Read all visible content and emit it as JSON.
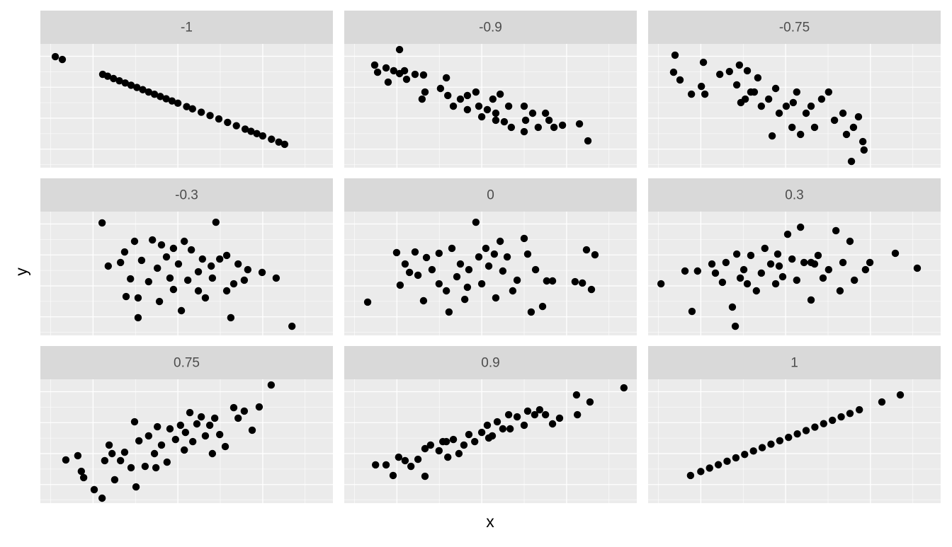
{
  "xlabel": "x",
  "ylabel": "y",
  "chart_data": [
    {
      "type": "scatter",
      "title": "-1",
      "xlim": [
        0,
        100
      ],
      "ylim": [
        0,
        100
      ],
      "xticks": [
        18,
        47,
        76
      ],
      "yticks": [
        15,
        40,
        65,
        90
      ],
      "grid": true,
      "tick_labels": false,
      "color": "#000000",
      "x": [
        5.1,
        7.5,
        21.3,
        23,
        25,
        27,
        29,
        31,
        33,
        35,
        37,
        39,
        41,
        43,
        45,
        47,
        50,
        52,
        55,
        58,
        61,
        64,
        67,
        70,
        72,
        74,
        76,
        79,
        81.5,
        83.5
      ],
      "y": [
        89.7,
        87.4,
        75.4,
        73.9,
        72.0,
        70.2,
        68.4,
        66.6,
        64.8,
        63.0,
        61.1,
        59.3,
        57.5,
        55.7,
        53.9,
        52.1,
        49.3,
        47.5,
        44.8,
        42.1,
        39.4,
        36.6,
        33.9,
        31.2,
        29.4,
        27.5,
        25.7,
        23.0,
        20.7,
        18.9
      ]
    },
    {
      "type": "scatter",
      "title": "-0.9",
      "xlim": [
        0,
        100
      ],
      "ylim": [
        0,
        100
      ],
      "xticks": [
        18,
        47,
        76
      ],
      "yticks": [
        15,
        40,
        65,
        90
      ],
      "grid": true,
      "tick_labels": false,
      "color": "#000000",
      "x": [
        10.4,
        11.4,
        14.3,
        15.0,
        16.9,
        18.9,
        18.9,
        20.6,
        21.3,
        24.2,
        27.1,
        27.6,
        26.6,
        32.9,
        34.9,
        35.4,
        37.3,
        39.7,
        42.1,
        45.0,
        46.0,
        47.0,
        48.9,
        50.8,
        51.8,
        53.3,
        54.7,
        56.2,
        57.1,
        61.5,
        62.0,
        64.4,
        66.3,
        68.8,
        70.0,
        71.7,
        74.6,
        80.4,
        83.3,
        61.5,
        51.8,
        42.1
      ],
      "y": [
        82.9,
        77.1,
        80.6,
        69.1,
        78.3,
        95.4,
        76.0,
        78.3,
        71.4,
        75.4,
        74.9,
        61.1,
        55.4,
        64.0,
        72.6,
        58.3,
        49.7,
        55.4,
        58.3,
        61.1,
        49.7,
        41.1,
        46.9,
        55.4,
        44.0,
        59.4,
        37.1,
        49.7,
        32.6,
        49.7,
        38.3,
        44.0,
        32.6,
        44.0,
        38.3,
        32.6,
        34.3,
        35.4,
        21.7,
        29.1,
        38.3,
        46.9
      ]
    },
    {
      "type": "scatter",
      "title": "-0.75",
      "xlim": [
        0,
        100
      ],
      "ylim": [
        0,
        100
      ],
      "xticks": [
        18,
        47,
        76
      ],
      "yticks": [
        15,
        40,
        65,
        90
      ],
      "grid": true,
      "tick_labels": false,
      "color": "#000000",
      "x": [
        9.2,
        8.7,
        10.9,
        14.8,
        18.9,
        18.2,
        19.4,
        24.5,
        27.8,
        31.2,
        30.3,
        31.7,
        33.9,
        35.1,
        37.5,
        38.7,
        41.2,
        42.4,
        43.6,
        44.8,
        47.2,
        49.2,
        50.8,
        52.1,
        54.0,
        55.7,
        56.9,
        59.3,
        61.7,
        63.7,
        66.6,
        67.8,
        70.2,
        71.9,
        73.4,
        73.8,
        69.5,
        33.2,
        36.3,
        49.6
      ],
      "y": [
        90.9,
        77.1,
        70.9,
        59.4,
        85.1,
        65.7,
        59.4,
        75.4,
        77.7,
        82.9,
        66.9,
        52.6,
        78.3,
        61.1,
        72.6,
        49.7,
        55.4,
        25.7,
        64.0,
        44.0,
        49.7,
        32.6,
        61.1,
        26.9,
        44.0,
        49.7,
        32.6,
        55.4,
        61.1,
        38.3,
        44.0,
        26.9,
        32.6,
        41.1,
        21.1,
        14.3,
        5.1,
        55.4,
        61.1,
        52.6
      ]
    },
    {
      "type": "scatter",
      "title": "-0.3",
      "xlim": [
        0,
        100
      ],
      "ylim": [
        0,
        100
      ],
      "xticks": [
        18,
        47,
        76
      ],
      "yticks": [
        15,
        40,
        65,
        90
      ],
      "grid": true,
      "tick_labels": false,
      "color": "#000000",
      "x": [
        21.1,
        60.0,
        23.2,
        27.4,
        28.8,
        29.3,
        30.8,
        32.2,
        33.4,
        34.6,
        37.0,
        38.3,
        40.0,
        41.4,
        43.1,
        44.3,
        45.5,
        47.2,
        48.2,
        49.2,
        50.4,
        51.6,
        54.0,
        55.4,
        56.4,
        58.4,
        58.8,
        61.3,
        63.7,
        65.1,
        66.1,
        67.6,
        69.7,
        70.9,
        75.8,
        80.6,
        86.0,
        40.7,
        45.5,
        33.4,
        54.0,
        63.7
      ],
      "y": [
        90.9,
        91.4,
        56.0,
        58.9,
        67.4,
        31.4,
        45.7,
        76.0,
        14.3,
        60.6,
        43.4,
        77.1,
        54.3,
        73.1,
        63.4,
        46.3,
        70.3,
        57.7,
        20.0,
        76.0,
        44.6,
        69.1,
        51.4,
        61.7,
        30.3,
        56.0,
        46.3,
        61.7,
        64.6,
        14.3,
        41.7,
        57.7,
        44.6,
        53.1,
        50.9,
        46.3,
        7.4,
        27.4,
        37.1,
        30.3,
        36.0,
        36.0
      ]
    },
    {
      "type": "scatter",
      "title": "0",
      "xlim": [
        0,
        100
      ],
      "ylim": [
        0,
        100
      ],
      "xticks": [
        18,
        47,
        76
      ],
      "yticks": [
        15,
        40,
        65,
        90
      ],
      "grid": true,
      "tick_labels": false,
      "color": "#000000",
      "x": [
        8.0,
        17.9,
        19.1,
        20.8,
        22.3,
        24.2,
        25.2,
        27.1,
        28.1,
        30.0,
        32.4,
        34.9,
        35.8,
        36.8,
        38.5,
        39.7,
        41.2,
        42.6,
        45.0,
        46.0,
        47.0,
        48.4,
        49.4,
        51.3,
        53.3,
        54.2,
        55.7,
        57.6,
        59.1,
        61.5,
        62.7,
        63.9,
        65.4,
        67.8,
        69.2,
        71.2,
        78.9,
        81.4,
        82.8,
        84.5,
        85.7,
        51.8,
        42.1,
        32.4
      ],
      "y": [
        26.9,
        66.9,
        40.6,
        57.7,
        50.9,
        67.4,
        48.6,
        28.0,
        62.9,
        53.1,
        66.3,
        36.0,
        18.9,
        70.3,
        47.4,
        57.7,
        29.1,
        53.1,
        91.4,
        63.4,
        41.7,
        70.3,
        56.0,
        65.7,
        76.0,
        52.0,
        63.4,
        36.0,
        44.6,
        78.3,
        65.7,
        18.9,
        53.1,
        23.4,
        44.0,
        44.0,
        43.4,
        42.3,
        69.1,
        37.1,
        65.1,
        30.3,
        38.9,
        41.7
      ]
    },
    {
      "type": "scatter",
      "title": "0.3",
      "xlim": [
        0,
        100
      ],
      "ylim": [
        0,
        100
      ],
      "xticks": [
        18,
        47,
        76
      ],
      "yticks": [
        15,
        40,
        65,
        90
      ],
      "grid": true,
      "tick_labels": false,
      "color": "#000000",
      "x": [
        4.4,
        15.0,
        12.6,
        16.9,
        21.8,
        23.0,
        25.4,
        26.6,
        28.8,
        29.8,
        30.3,
        31.5,
        32.7,
        33.9,
        35.1,
        37.0,
        38.7,
        39.9,
        41.9,
        43.6,
        44.3,
        46.0,
        47.7,
        49.2,
        50.8,
        52.1,
        53.3,
        55.7,
        56.9,
        58.1,
        59.8,
        61.7,
        64.2,
        65.6,
        66.6,
        69.0,
        70.5,
        74.3,
        75.8,
        84.5,
        92.0,
        55.7,
        44.8
      ],
      "y": [
        41.7,
        19.4,
        52.0,
        52.0,
        57.7,
        50.3,
        42.9,
        58.9,
        22.9,
        7.4,
        65.7,
        46.3,
        53.1,
        41.7,
        64.6,
        36.0,
        50.3,
        70.3,
        57.7,
        41.7,
        65.7,
        47.4,
        81.7,
        61.7,
        44.6,
        87.4,
        58.9,
        28.6,
        57.7,
        64.6,
        46.3,
        53.1,
        84.6,
        36.0,
        58.9,
        76.0,
        44.6,
        53.1,
        58.9,
        66.3,
        54.3,
        58.9,
        56.0
      ]
    },
    {
      "type": "scatter",
      "title": "0.75",
      "xlim": [
        0,
        100
      ],
      "ylim": [
        0,
        100
      ],
      "xticks": [
        18,
        47,
        76
      ],
      "yticks": [
        15,
        40,
        65,
        90
      ],
      "grid": true,
      "tick_labels": false,
      "color": "#000000",
      "x": [
        8.7,
        12.8,
        14.0,
        14.8,
        18.4,
        21.1,
        22.0,
        23.5,
        24.5,
        25.4,
        27.4,
        28.8,
        31.0,
        32.2,
        32.7,
        33.7,
        35.8,
        37.0,
        39.0,
        40.0,
        41.4,
        43.3,
        44.3,
        46.2,
        47.9,
        49.6,
        51.1,
        52.1,
        53.5,
        55.0,
        56.4,
        57.9,
        59.6,
        61.3,
        63.2,
        66.1,
        67.6,
        69.7,
        72.4,
        74.8,
        78.9,
        58.8,
        49.2,
        39.5
      ],
      "y": [
        34.9,
        38.3,
        25.7,
        20.6,
        10.9,
        4.0,
        34.3,
        46.9,
        40.0,
        18.9,
        34.3,
        41.1,
        28.6,
        65.7,
        13.1,
        50.3,
        29.7,
        54.3,
        40.0,
        61.7,
        46.9,
        33.1,
        60.0,
        51.4,
        62.9,
        57.1,
        73.1,
        49.7,
        64.0,
        69.7,
        54.3,
        62.9,
        68.6,
        55.4,
        45.7,
        77.1,
        68.6,
        74.3,
        58.9,
        77.7,
        95.4,
        40.0,
        42.9,
        28.6
      ]
    },
    {
      "type": "scatter",
      "title": "0.9",
      "xlim": [
        0,
        100
      ],
      "ylim": [
        0,
        100
      ],
      "xticks": [
        18,
        47,
        76
      ],
      "yticks": [
        15,
        40,
        65,
        90
      ],
      "grid": true,
      "tick_labels": false,
      "color": "#000000",
      "x": [
        10.7,
        14.3,
        16.7,
        18.6,
        20.8,
        22.8,
        25.2,
        27.6,
        27.6,
        29.5,
        32.4,
        33.7,
        35.4,
        37.3,
        39.2,
        40.9,
        42.6,
        44.6,
        47.0,
        48.9,
        50.6,
        52.3,
        54.2,
        56.2,
        59.1,
        61.5,
        62.7,
        65.1,
        66.8,
        68.8,
        71.2,
        73.6,
        79.4,
        79.7,
        84.0,
        95.6,
        34.9,
        49.4,
        56.7
      ],
      "y": [
        30.9,
        30.9,
        22.3,
        37.1,
        34.3,
        29.7,
        35.4,
        21.7,
        44.0,
        46.9,
        42.3,
        49.7,
        37.1,
        51.4,
        40.0,
        46.9,
        55.4,
        49.7,
        57.1,
        62.9,
        54.3,
        65.7,
        60.0,
        71.4,
        69.7,
        62.9,
        74.3,
        71.4,
        75.4,
        71.4,
        64.0,
        68.6,
        87.4,
        71.4,
        81.7,
        93.1,
        49.7,
        52.6,
        60.0
      ]
    },
    {
      "type": "scatter",
      "title": "1",
      "xlim": [
        0,
        100
      ],
      "ylim": [
        0,
        100
      ],
      "xticks": [
        18,
        47,
        76
      ],
      "yticks": [
        15,
        40,
        65,
        90
      ],
      "grid": true,
      "tick_labels": false,
      "color": "#000000",
      "x": [
        14.5,
        18,
        21,
        24,
        27,
        30,
        33,
        36,
        39,
        42,
        45,
        48,
        51,
        54,
        57,
        60,
        63,
        66,
        69,
        72.2,
        79.9,
        86.2
      ],
      "y": [
        22.3,
        25.5,
        28.3,
        31.0,
        33.8,
        36.6,
        39.3,
        42.1,
        44.8,
        47.6,
        50.4,
        53.1,
        55.9,
        58.6,
        61.4,
        64.2,
        66.9,
        69.7,
        72.4,
        75.4,
        81.7,
        87.4
      ]
    }
  ]
}
